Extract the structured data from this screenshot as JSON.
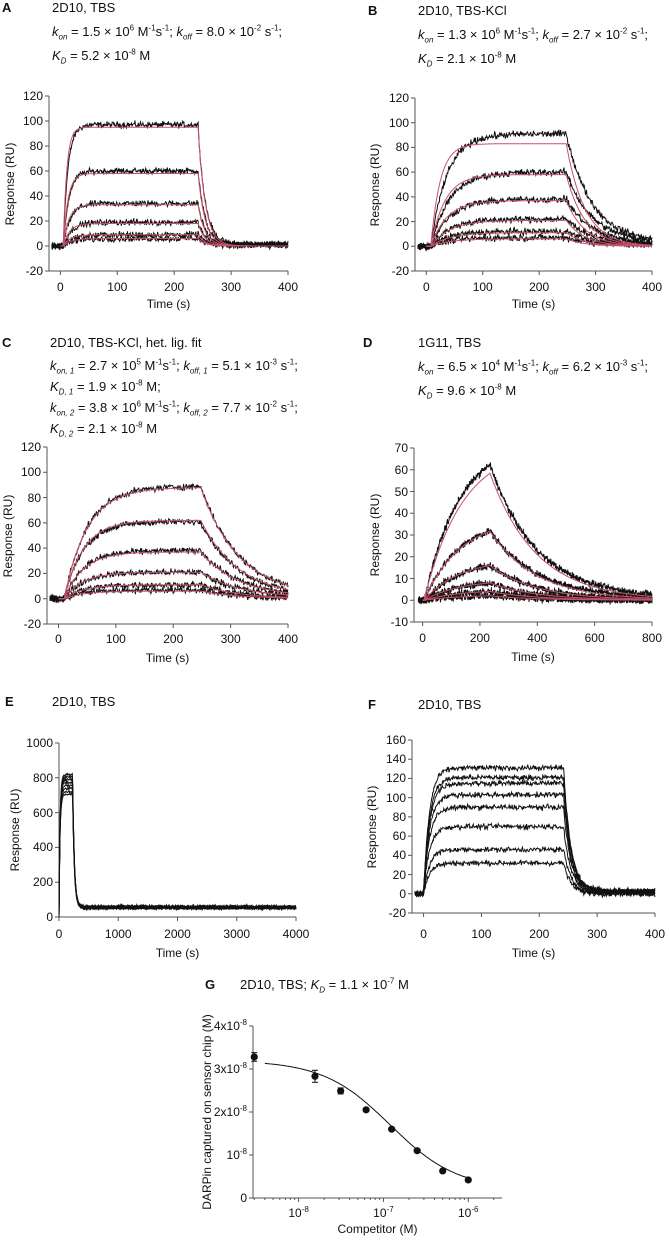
{
  "figure": {
    "description_labels": [
      "A",
      "B",
      "C",
      "D",
      "E",
      "F",
      "G"
    ]
  },
  "chart_data": [
    {
      "letter": "A",
      "type": "line",
      "title": "2D10, TBS",
      "kinetics": [
        "*k*_{*on*} = 1.5 × 10^{6} M^{-1}s^{-1}; *k*_{*off*} = 8.0 × 10^{-2} s^{-1};",
        "*K*_{*D*} = 5.2 × 10^{-8} M"
      ],
      "xlabel": "Time (s)",
      "ylabel": "Response (RU)",
      "xlim": [
        -20,
        400
      ],
      "ylim": [
        -20,
        120
      ],
      "xticks": [
        0,
        100,
        200,
        300,
        400
      ],
      "xtick_labels": [
        "0",
        "100",
        "200",
        "300",
        "400"
      ],
      "yticks": [
        -20,
        0,
        20,
        40,
        60,
        80,
        100,
        120
      ],
      "ytick_labels": [
        "-20",
        "0",
        "20",
        "40",
        "60",
        "80",
        "100",
        "120"
      ],
      "injection": {
        "start": 5,
        "end": 242,
        "t_max": 400
      },
      "data_series": [
        {
          "plateau": 97,
          "kobs": 0.12,
          "koff": 0.08,
          "residual": 1
        },
        {
          "plateau": 60,
          "kobs": 0.1,
          "koff": 0.08,
          "residual": 1
        },
        {
          "plateau": 34,
          "kobs": 0.08,
          "koff": 0.08,
          "residual": 1
        },
        {
          "plateau": 19,
          "kobs": 0.07,
          "koff": 0.08,
          "residual": 1
        },
        {
          "plateau": 9,
          "kobs": 0.06,
          "koff": 0.08,
          "residual": 1
        },
        {
          "plateau": 6,
          "kobs": 0.05,
          "koff": 0.08,
          "residual": 1
        }
      ],
      "fit_series": [
        {
          "plateau": 95,
          "kobs": 0.16,
          "koff": 0.08,
          "residual": 0
        },
        {
          "plateau": 58,
          "kobs": 0.12,
          "koff": 0.08,
          "residual": 0
        },
        {
          "plateau": 33,
          "kobs": 0.1,
          "koff": 0.08,
          "residual": 0
        },
        {
          "plateau": 18,
          "kobs": 0.09,
          "koff": 0.08,
          "residual": 0
        },
        {
          "plateau": 9,
          "kobs": 0.08,
          "koff": 0.08,
          "residual": 0
        },
        {
          "plateau": 6,
          "kobs": 0.07,
          "koff": 0.08,
          "residual": 0
        }
      ]
    },
    {
      "letter": "B",
      "type": "line",
      "title": "2D10, TBS-KCl",
      "kinetics": [
        "*k*_{*on*} = 1.3 × 10^{6} M^{-1}s^{-1}; *k*_{*off*} = 2.7 × 10^{-2} s^{-1};",
        "*K*_{*D*} = 2.1 × 10^{-8} M"
      ],
      "xlabel": "Time (s)",
      "ylabel": "Response (RU)",
      "xlim": [
        -20,
        400
      ],
      "ylim": [
        -20,
        120
      ],
      "xticks": [
        0,
        100,
        200,
        300,
        400
      ],
      "xtick_labels": [
        "0",
        "100",
        "200",
        "300",
        "400"
      ],
      "yticks": [
        -20,
        0,
        20,
        40,
        60,
        80,
        100,
        120
      ],
      "ytick_labels": [
        "-20",
        "0",
        "20",
        "40",
        "60",
        "80",
        "100",
        "120"
      ],
      "injection": {
        "start": 8,
        "end": 248,
        "t_max": 400
      },
      "data_series": [
        {
          "plateau": 91,
          "kobs": 0.035,
          "koff": 0.022,
          "residual": 3
        },
        {
          "plateau": 60,
          "kobs": 0.03,
          "koff": 0.022,
          "residual": 3
        },
        {
          "plateau": 38,
          "kobs": 0.03,
          "koff": 0.022,
          "residual": 2
        },
        {
          "plateau": 22,
          "kobs": 0.03,
          "koff": 0.022,
          "residual": 2
        },
        {
          "plateau": 12,
          "kobs": 0.03,
          "koff": 0.022,
          "residual": 1
        },
        {
          "plateau": 7,
          "kobs": 0.03,
          "koff": 0.022,
          "residual": 1
        }
      ],
      "fit_series": [
        {
          "plateau": 83,
          "kobs": 0.06,
          "koff": 0.03,
          "residual": 0
        },
        {
          "plateau": 58,
          "kobs": 0.04,
          "koff": 0.03,
          "residual": 0
        },
        {
          "plateau": 37,
          "kobs": 0.035,
          "koff": 0.03,
          "residual": 0
        },
        {
          "plateau": 21,
          "kobs": 0.03,
          "koff": 0.03,
          "residual": 0
        },
        {
          "plateau": 11,
          "kobs": 0.03,
          "koff": 0.03,
          "residual": 0
        },
        {
          "plateau": 6,
          "kobs": 0.03,
          "koff": 0.03,
          "residual": 0
        }
      ]
    },
    {
      "letter": "C",
      "type": "line",
      "title": "2D10, TBS-KCl, het. lig. fit",
      "kinetics": [
        "*k*_{*on, 1*} = 2.7 × 10^{5} M^{-1}s^{-1}; *k*_{*off, 1*} = 5.1 × 10^{-3} s^{-1};",
        "*K*_{*D, 1*} = 1.9 × 10^{-8} M;",
        "*k*_{*on, 2*} = 3.8 × 10^{6} M^{-1}s^{-1}; *k*_{*off, 2*} = 7.7 × 10^{-2} s^{-1};",
        "*K*_{*D, 2*} = 2.1 × 10^{-8} M"
      ],
      "xlabel": "Time (s)",
      "ylabel": "Response (RU)",
      "xlim": [
        -20,
        400
      ],
      "ylim": [
        -20,
        120
      ],
      "xticks": [
        0,
        100,
        200,
        300,
        400
      ],
      "xtick_labels": [
        "0",
        "100",
        "200",
        "300",
        "400"
      ],
      "yticks": [
        -20,
        0,
        20,
        40,
        60,
        80,
        100,
        120
      ],
      "ytick_labels": [
        "-20",
        "0",
        "20",
        "40",
        "60",
        "80",
        "100",
        "120"
      ],
      "injection": {
        "start": 10,
        "end": 248,
        "t_max": 400
      },
      "data_series": [
        {
          "plateau": 89,
          "kobs": 0.025,
          "koff": 0.015,
          "residual": 2
        },
        {
          "plateau": 61,
          "kobs": 0.03,
          "koff": 0.015,
          "residual": 1
        },
        {
          "plateau": 38,
          "kobs": 0.03,
          "koff": 0.015,
          "residual": 1
        },
        {
          "plateau": 21,
          "kobs": 0.03,
          "koff": 0.015,
          "residual": 1
        },
        {
          "plateau": 11,
          "kobs": 0.03,
          "koff": 0.015,
          "residual": 0
        },
        {
          "plateau": 7,
          "kobs": 0.03,
          "koff": 0.015,
          "residual": 0
        }
      ],
      "fit_series": [
        {
          "plateau": 88,
          "kobs": 0.025,
          "koff": 0.015,
          "residual": 2
        },
        {
          "plateau": 62,
          "kobs": 0.03,
          "koff": 0.015,
          "residual": 1
        },
        {
          "plateau": 37,
          "kobs": 0.03,
          "koff": 0.015,
          "residual": 1
        },
        {
          "plateau": 21,
          "kobs": 0.03,
          "koff": 0.015,
          "residual": 1
        },
        {
          "plateau": 11,
          "kobs": 0.03,
          "koff": 0.015,
          "residual": 0
        },
        {
          "plateau": 6,
          "kobs": 0.03,
          "koff": 0.015,
          "residual": 0
        }
      ]
    },
    {
      "letter": "D",
      "type": "line",
      "title": "1G11, TBS",
      "kinetics": [
        "*k*_{*on*} = 6.5 × 10^{4} M^{-1}s^{-1}; *k*_{*off*} = 6.2 × 10^{-3} s^{-1};",
        "*K*_{*D*} = 9.6 × 10^{-8} M"
      ],
      "xlabel": "Time (s)",
      "ylabel": "Response (RU)",
      "xlim": [
        -30,
        800
      ],
      "ylim": [
        -10,
        70
      ],
      "xticks": [
        0,
        200,
        400,
        600,
        800
      ],
      "xtick_labels": [
        "0",
        "200",
        "400",
        "600",
        "800"
      ],
      "yticks": [
        -10,
        0,
        10,
        20,
        30,
        40,
        50,
        60,
        70
      ],
      "ytick_labels": [
        "-10",
        "0",
        "10",
        "20",
        "30",
        "40",
        "50",
        "60",
        "70"
      ],
      "injection": {
        "start": 5,
        "end": 235,
        "t_max": 800
      },
      "data_series": [
        {
          "plateau": 74,
          "kobs": 0.008,
          "koff": 0.0062,
          "residual": 1
        },
        {
          "plateau": 38,
          "kobs": 0.008,
          "koff": 0.0062,
          "residual": 1
        },
        {
          "plateau": 19,
          "kobs": 0.008,
          "koff": 0.0062,
          "residual": 0
        },
        {
          "plateau": 9.5,
          "kobs": 0.008,
          "koff": 0.0062,
          "residual": 0
        },
        {
          "plateau": 4.8,
          "kobs": 0.008,
          "koff": 0.0062,
          "residual": 0
        },
        {
          "plateau": 2.4,
          "kobs": 0.008,
          "koff": 0.0062,
          "residual": 0
        }
      ],
      "fit_series": [
        {
          "plateau": 71,
          "kobs": 0.0075,
          "koff": 0.0062,
          "residual": 0
        },
        {
          "plateau": 38,
          "kobs": 0.0078,
          "koff": 0.0062,
          "residual": 0
        },
        {
          "plateau": 19,
          "kobs": 0.008,
          "koff": 0.0062,
          "residual": 0
        },
        {
          "plateau": 9.5,
          "kobs": 0.008,
          "koff": 0.0062,
          "residual": 0
        },
        {
          "plateau": 4.8,
          "kobs": 0.008,
          "koff": 0.0062,
          "residual": 0
        },
        {
          "plateau": 2.4,
          "kobs": 0.008,
          "koff": 0.0062,
          "residual": 0
        }
      ]
    },
    {
      "letter": "E",
      "type": "line",
      "title": "2D10, TBS",
      "kinetics": [],
      "xlabel": "Time (s)",
      "ylabel": "Response (RU)",
      "xlim": [
        0,
        4000
      ],
      "ylim": [
        0,
        1000
      ],
      "xticks": [
        0,
        1000,
        2000,
        3000,
        4000
      ],
      "xtick_labels": [
        "0",
        "1000",
        "2000",
        "3000",
        "4000"
      ],
      "yticks": [
        0,
        200,
        400,
        600,
        800,
        1000
      ],
      "ytick_labels": [
        "0",
        "200",
        "400",
        "600",
        "800",
        "1000"
      ],
      "injection": {
        "start": 0,
        "end": 230,
        "t_max": 4000
      },
      "data_series": [
        {
          "plateau": 820,
          "kobs": 0.06,
          "koff": 0.035,
          "residual": 62
        },
        {
          "plateau": 805,
          "kobs": 0.06,
          "koff": 0.035,
          "residual": 60
        },
        {
          "plateau": 790,
          "kobs": 0.06,
          "koff": 0.035,
          "residual": 58
        },
        {
          "plateau": 772,
          "kobs": 0.06,
          "koff": 0.035,
          "residual": 56
        },
        {
          "plateau": 755,
          "kobs": 0.06,
          "koff": 0.035,
          "residual": 55
        },
        {
          "plateau": 738,
          "kobs": 0.06,
          "koff": 0.035,
          "residual": 53
        },
        {
          "plateau": 720,
          "kobs": 0.06,
          "koff": 0.035,
          "residual": 51
        },
        {
          "plateau": 705,
          "kobs": 0.06,
          "koff": 0.035,
          "residual": 50
        }
      ],
      "fit_series": []
    },
    {
      "letter": "F",
      "type": "line",
      "title": "2D10, TBS",
      "kinetics": [],
      "xlabel": "Time (s)",
      "ylabel": "Response (RU)",
      "xlim": [
        -20,
        400
      ],
      "ylim": [
        -20,
        160
      ],
      "xticks": [
        0,
        100,
        200,
        300,
        400
      ],
      "xtick_labels": [
        "0",
        "100",
        "200",
        "300",
        "400"
      ],
      "yticks": [
        -20,
        0,
        20,
        40,
        60,
        80,
        100,
        120,
        140,
        160
      ],
      "ytick_labels": [
        "-20",
        "0",
        "20",
        "40",
        "60",
        "80",
        "100",
        "120",
        "140",
        "160"
      ],
      "injection": {
        "start": 0,
        "end": 242,
        "t_max": 400
      },
      "data_series": [
        {
          "plateau": 131,
          "kobs": 0.1,
          "koff": 0.08,
          "residual": 3
        },
        {
          "plateau": 121,
          "kobs": 0.1,
          "koff": 0.08,
          "residual": 3
        },
        {
          "plateau": 115,
          "kobs": 0.1,
          "koff": 0.08,
          "residual": 3
        },
        {
          "plateau": 103,
          "kobs": 0.1,
          "koff": 0.08,
          "residual": 2
        },
        {
          "plateau": 90,
          "kobs": 0.1,
          "koff": 0.08,
          "residual": 2
        },
        {
          "plateau": 70,
          "kobs": 0.1,
          "koff": 0.08,
          "residual": 1
        },
        {
          "plateau": 46,
          "kobs": 0.1,
          "koff": 0.08,
          "residual": 1
        },
        {
          "plateau": 32,
          "kobs": 0.1,
          "koff": 0.08,
          "residual": 0
        }
      ],
      "fit_series": []
    },
    {
      "letter": "G",
      "type": "scatter",
      "title": "2D10, TBS; *K*_{*D*} = 1.1 × 10^{-7} M",
      "kinetics": [],
      "xlabel": "Competitor (M)",
      "ylabel": "DARPin captured on sensor chip  (M)",
      "xscale": "log",
      "xlim": [
        2.9e-09,
        2.5e-06
      ],
      "ylim": [
        0,
        4e-08
      ],
      "xticks": [
        1e-08,
        1e-07,
        1e-06
      ],
      "xtick_labels": [
        "10^{-8}",
        "10^{-7}",
        "10^{-6}"
      ],
      "yticks": [
        0,
        1e-08,
        2e-08,
        3e-08,
        4e-08
      ],
      "ytick_labels": [
        "0",
        "10^{-8}",
        "2x10^{-8}",
        "3x10^{-8}",
        "4x10^{-8}"
      ],
      "points": [
        {
          "x": 3e-09,
          "y": 3.28e-08,
          "err": 1e-09
        },
        {
          "x": 1.56e-08,
          "y": 2.83e-08,
          "err": 1.4e-09
        },
        {
          "x": 3.13e-08,
          "y": 2.49e-08,
          "err": 7e-10
        },
        {
          "x": 6.25e-08,
          "y": 2.05e-08,
          "err": 3e-10
        },
        {
          "x": 1.25e-07,
          "y": 1.6e-08,
          "err": 2e-10
        },
        {
          "x": 2.5e-07,
          "y": 1.1e-08,
          "err": 2e-10
        },
        {
          "x": 5e-07,
          "y": 6.3e-09,
          "err": 2e-10
        },
        {
          "x": 1e-06,
          "y": 4.2e-09,
          "err": 2e-10
        }
      ],
      "fit": {
        "top": 3.2e-08,
        "bottom": 2e-09,
        "ic50": 1.2e-07,
        "hill": 1.1,
        "x_from": 4e-09,
        "x_to": 1e-06
      }
    }
  ],
  "colors": {
    "data": "#111111",
    "fit": "#c9506b",
    "axis": "#555555"
  }
}
